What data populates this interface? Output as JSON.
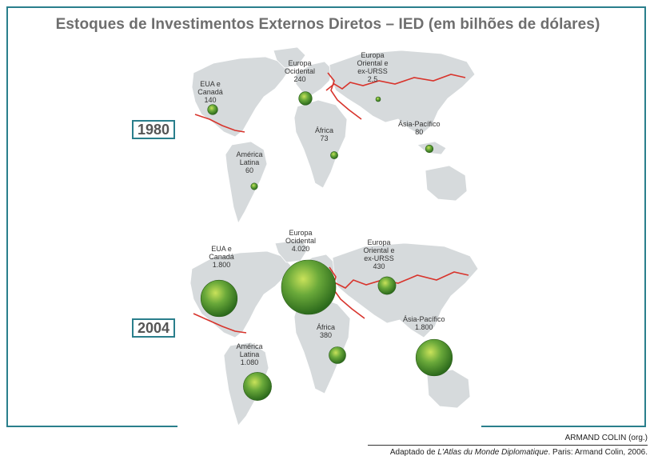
{
  "title": "Estoques de Investimentos Externos Diretos – IED (em bilhões de dólares)",
  "colors": {
    "frame": "#2a7f8c",
    "land": "#d6dadc",
    "boundary": "#d8342c",
    "bubble": "#3f8f2a",
    "title": "#6e6e6e"
  },
  "maps": [
    {
      "year": "1980",
      "regions": [
        {
          "name": "EUA e Canadá",
          "value": "140",
          "amount": 140
        },
        {
          "name": "Europa Ocidental",
          "value": "240",
          "amount": 240
        },
        {
          "name": "Europa Oriental e ex-URSS",
          "value": "2,5",
          "amount": 2.5
        },
        {
          "name": "África",
          "value": "73",
          "amount": 73
        },
        {
          "name": "Ásia-Pacífico",
          "value": "80",
          "amount": 80
        },
        {
          "name": "América Latina",
          "value": "60",
          "amount": 60
        }
      ]
    },
    {
      "year": "2004",
      "regions": [
        {
          "name": "EUA e Canadá",
          "value": "1.800",
          "amount": 1800
        },
        {
          "name": "Europa Ocidental",
          "value": "4.020",
          "amount": 4020
        },
        {
          "name": "Europa Oriental e ex-URSS",
          "value": "430",
          "amount": 430
        },
        {
          "name": "África",
          "value": "380",
          "amount": 380
        },
        {
          "name": "Ásia-Pacífico",
          "value": "1.800",
          "amount": 1800
        },
        {
          "name": "América Latina",
          "value": "1.080",
          "amount": 1080
        }
      ]
    }
  ],
  "credits": {
    "author": "ARMAND COLIN (org.)",
    "source_prefix": "Adaptado de ",
    "source_title": "L'Atlas du Monde Diplomatique",
    "source_suffix": ". Paris: Armand Colin, 2006."
  }
}
